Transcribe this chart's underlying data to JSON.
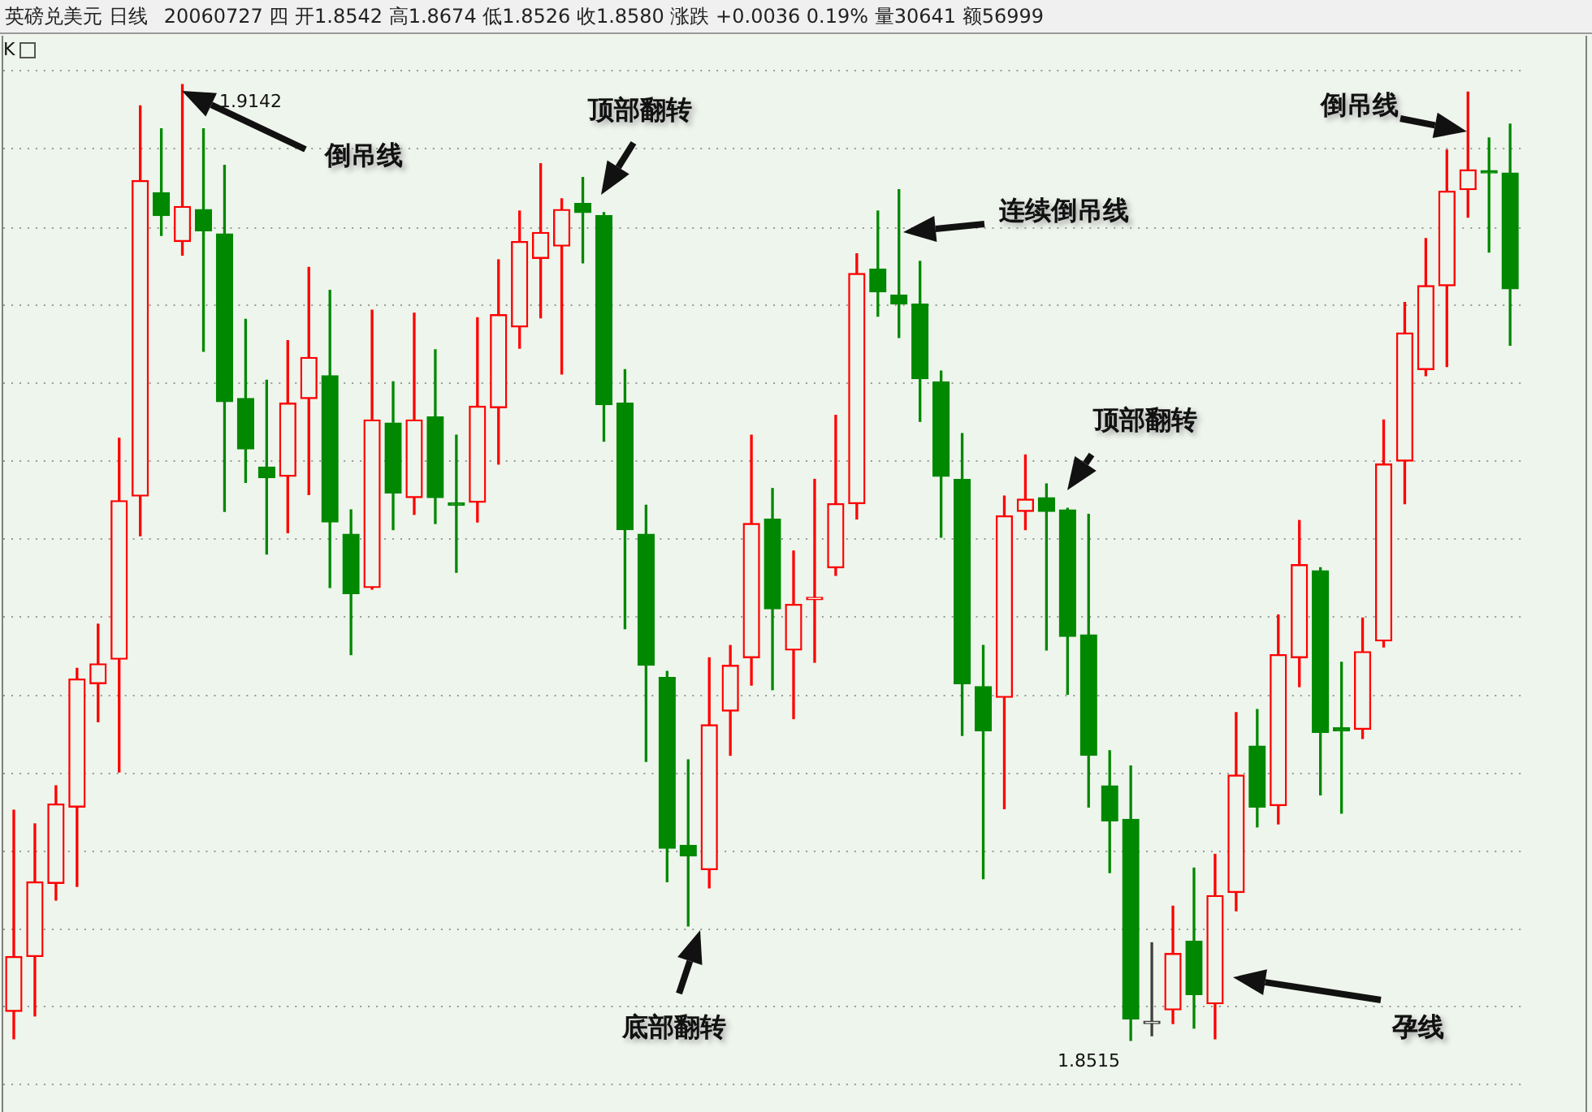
{
  "chart_data": {
    "type": "candlestick",
    "title": "英磅兑美元 日线",
    "subtitle": "20060727 四 开1.8542 高1.8674 低1.8526 收1.8580 涨跌 +0.0036 0.19% 量30641 额56999",
    "annotations": [
      "K",
      "1.9142",
      "倒吊线",
      "顶部翻转",
      "连续倒吊线",
      "顶部翻转",
      "底部翻转",
      "孕线",
      "倒吊线",
      "1.8515"
    ],
    "categories": [
      null,
      null,
      null,
      null,
      null,
      null,
      null,
      null,
      null,
      null,
      null,
      null,
      null,
      null,
      null,
      null,
      null,
      null,
      null,
      null,
      null,
      null,
      null,
      null,
      null,
      null,
      null,
      null,
      null,
      null,
      null,
      null,
      null,
      null,
      null,
      null,
      null,
      null,
      null,
      null,
      null,
      null,
      null,
      null,
      null,
      null,
      null,
      null,
      null,
      null,
      null,
      null,
      null,
      null,
      null,
      null,
      null,
      null,
      null,
      null,
      null,
      null,
      null,
      null,
      null,
      null,
      null,
      null,
      null,
      null,
      null,
      null
    ],
    "ohlc": [
      [
        1.8534,
        1.8666,
        1.8516,
        1.857
      ],
      [
        1.857,
        1.8657,
        1.8531,
        1.8619
      ],
      [
        1.8618,
        1.8682,
        1.8607,
        1.867
      ],
      [
        1.8668,
        1.8759,
        1.8616,
        1.8752
      ],
      [
        1.8749,
        1.8788,
        1.8724,
        1.8762
      ],
      [
        1.8765,
        1.891,
        1.8691,
        1.8869
      ],
      [
        1.8872,
        1.9128,
        1.8846,
        1.9079
      ],
      [
        1.9071,
        1.9113,
        1.9043,
        1.9056
      ],
      [
        1.9039,
        1.9142,
        1.903,
        1.9062
      ],
      [
        1.906,
        1.9113,
        1.8967,
        1.9046
      ],
      [
        1.9044,
        1.9089,
        1.8862,
        1.8934
      ],
      [
        1.8936,
        1.8988,
        1.8881,
        1.8903
      ],
      [
        1.8891,
        1.8948,
        1.8834,
        1.8884
      ],
      [
        1.8885,
        1.8974,
        1.8848,
        1.8933
      ],
      [
        1.8936,
        1.9022,
        1.8873,
        1.8963
      ],
      [
        1.8951,
        1.9007,
        1.8812,
        1.8855
      ],
      [
        1.8847,
        1.8863,
        1.8768,
        1.8808
      ],
      [
        1.8812,
        1.8994,
        1.8811,
        1.8922
      ],
      [
        1.892,
        1.8947,
        1.885,
        1.8874
      ],
      [
        1.8871,
        1.8992,
        1.886,
        1.8922
      ],
      [
        1.8924,
        1.8968,
        1.8854,
        1.8871
      ],
      [
        1.8867,
        1.8912,
        1.8822,
        1.8866
      ],
      [
        1.8868,
        1.8989,
        1.8855,
        1.8931
      ],
      [
        1.893,
        1.9027,
        1.8893,
        1.8991
      ],
      [
        1.8983,
        1.9059,
        1.8969,
        1.9039
      ],
      [
        1.9028,
        1.909,
        1.8989,
        1.9045
      ],
      [
        1.9036,
        1.9067,
        1.8952,
        1.906
      ],
      [
        1.9064,
        1.9081,
        1.9025,
        1.9058
      ],
      [
        1.9056,
        1.9058,
        1.8908,
        1.8932
      ],
      [
        1.8933,
        1.8955,
        1.8785,
        1.885
      ],
      [
        1.8847,
        1.8866,
        1.8698,
        1.8761
      ],
      [
        1.8753,
        1.8757,
        1.8619,
        1.8641
      ],
      [
        1.8643,
        1.8699,
        1.859,
        1.8636
      ],
      [
        1.8627,
        1.8766,
        1.8615,
        1.8722
      ],
      [
        1.8731,
        1.8774,
        1.8702,
        1.8761
      ],
      [
        1.8766,
        1.8912,
        1.8748,
        1.8854
      ],
      [
        1.8857,
        1.8877,
        1.8745,
        1.8798
      ],
      [
        1.8771,
        1.8836,
        1.8726,
        1.8801
      ],
      [
        1.8804,
        1.8883,
        1.8763,
        1.8805
      ],
      [
        1.8825,
        1.8925,
        1.882,
        1.8867
      ],
      [
        1.8867,
        1.9031,
        1.8857,
        1.9018
      ],
      [
        1.9021,
        1.9059,
        1.899,
        1.9006
      ],
      [
        1.9004,
        1.9073,
        1.8976,
        1.8998
      ],
      [
        1.8998,
        1.9026,
        1.8921,
        1.8949
      ],
      [
        1.8947,
        1.8954,
        1.8845,
        1.8885
      ],
      [
        1.8883,
        1.8913,
        1.8715,
        1.8749
      ],
      [
        1.8747,
        1.8774,
        1.8621,
        1.8718
      ],
      [
        1.874,
        1.8872,
        1.8667,
        1.8859
      ],
      [
        1.8862,
        1.8899,
        1.885,
        1.887
      ],
      [
        1.8871,
        1.888,
        1.8771,
        1.8862
      ],
      [
        1.8863,
        1.8864,
        1.8742,
        1.878
      ],
      [
        1.8781,
        1.886,
        1.8668,
        1.8702
      ],
      [
        1.8682,
        1.8705,
        1.8625,
        1.8659
      ],
      [
        1.866,
        1.8695,
        1.8515,
        1.8529
      ],
      [
        1.8526,
        1.8579,
        1.8518,
        1.8526
      ],
      [
        1.8535,
        1.8603,
        1.8526,
        1.8572
      ],
      [
        1.858,
        1.8628,
        1.8523,
        1.8545
      ],
      [
        1.8539,
        1.8637,
        1.8516,
        1.861
      ],
      [
        1.8612,
        1.873,
        1.86,
        1.8689
      ],
      [
        1.8708,
        1.8732,
        1.8655,
        1.8668
      ],
      [
        1.8669,
        1.8794,
        1.8657,
        1.8768
      ],
      [
        1.8766,
        1.8856,
        1.8747,
        1.8827
      ],
      [
        1.8823,
        1.8825,
        1.8676,
        1.8717
      ],
      [
        1.872,
        1.8763,
        1.8664,
        1.8718
      ],
      [
        1.8719,
        1.8792,
        1.8713,
        1.877
      ],
      [
        1.8777,
        1.8922,
        1.8773,
        1.8893
      ],
      [
        1.8895,
        1.8999,
        1.8867,
        1.8979
      ],
      [
        1.8955,
        1.9041,
        1.8951,
        1.901
      ],
      [
        1.901,
        1.9099,
        1.8957,
        1.9072
      ],
      [
        1.9073,
        1.9137,
        1.9055,
        1.9086
      ],
      [
        1.9085,
        1.9107,
        1.9032,
        1.9084
      ],
      [
        1.9084,
        1.9116,
        1.8971,
        1.9008
      ]
    ],
    "colors": [
      "#ff0000",
      "#ff0000",
      "#ff0000",
      "#ff0000",
      "#ff0000",
      "#ff0000",
      "#ff0000",
      "#008800",
      "#ff0000",
      "#008800",
      "#008800",
      "#008800",
      "#008800",
      "#ff0000",
      "#ff0000",
      "#008800",
      "#008800",
      "#ff0000",
      "#008800",
      "#ff0000",
      "#008800",
      "#008800",
      "#ff0000",
      "#ff0000",
      "#ff0000",
      "#ff0000",
      "#ff0000",
      "#008800",
      "#008800",
      "#008800",
      "#008800",
      "#008800",
      "#008800",
      "#ff0000",
      "#ff0000",
      "#ff0000",
      "#008800",
      "#ff0000",
      "#ff0000",
      "#ff0000",
      "#ff0000",
      "#008800",
      "#008800",
      "#008800",
      "#008800",
      "#008800",
      "#008800",
      "#ff0000",
      "#ff0000",
      "#008800",
      "#008800",
      "#008800",
      "#008800",
      "#008800",
      "#404040",
      "#ff0000",
      "#008800",
      "#ff0000",
      "#ff0000",
      "#008800",
      "#ff0000",
      "#ff0000",
      "#008800",
      "#008800",
      "#ff0000",
      "#ff0000",
      "#ff0000",
      "#ff0000",
      "#ff0000",
      "#ff0000",
      "#008800",
      "#008800"
    ],
    "ylim": [
      1.8468,
      1.9174
    ],
    "yticks": [
      {
        "value": 1.9151,
        "label": null
      },
      {
        "value": 1.91,
        "label": null
      },
      {
        "value": 1.9048,
        "label": null
      },
      {
        "value": 1.8997,
        "label": null
      },
      {
        "value": 1.8946,
        "label": null
      },
      {
        "value": 1.8895,
        "label": null
      },
      {
        "value": 1.8844,
        "label": null
      },
      {
        "value": 1.8793,
        "label": null
      },
      {
        "value": 1.8741,
        "label": null
      },
      {
        "value": 1.869,
        "label": null
      },
      {
        "value": 1.8639,
        "label": null
      },
      {
        "value": 1.8588,
        "label": null
      },
      {
        "value": 1.8537,
        "label": null
      },
      {
        "value": 1.8486,
        "label": null
      }
    ],
    "grid": "y",
    "legend": false
  }
}
